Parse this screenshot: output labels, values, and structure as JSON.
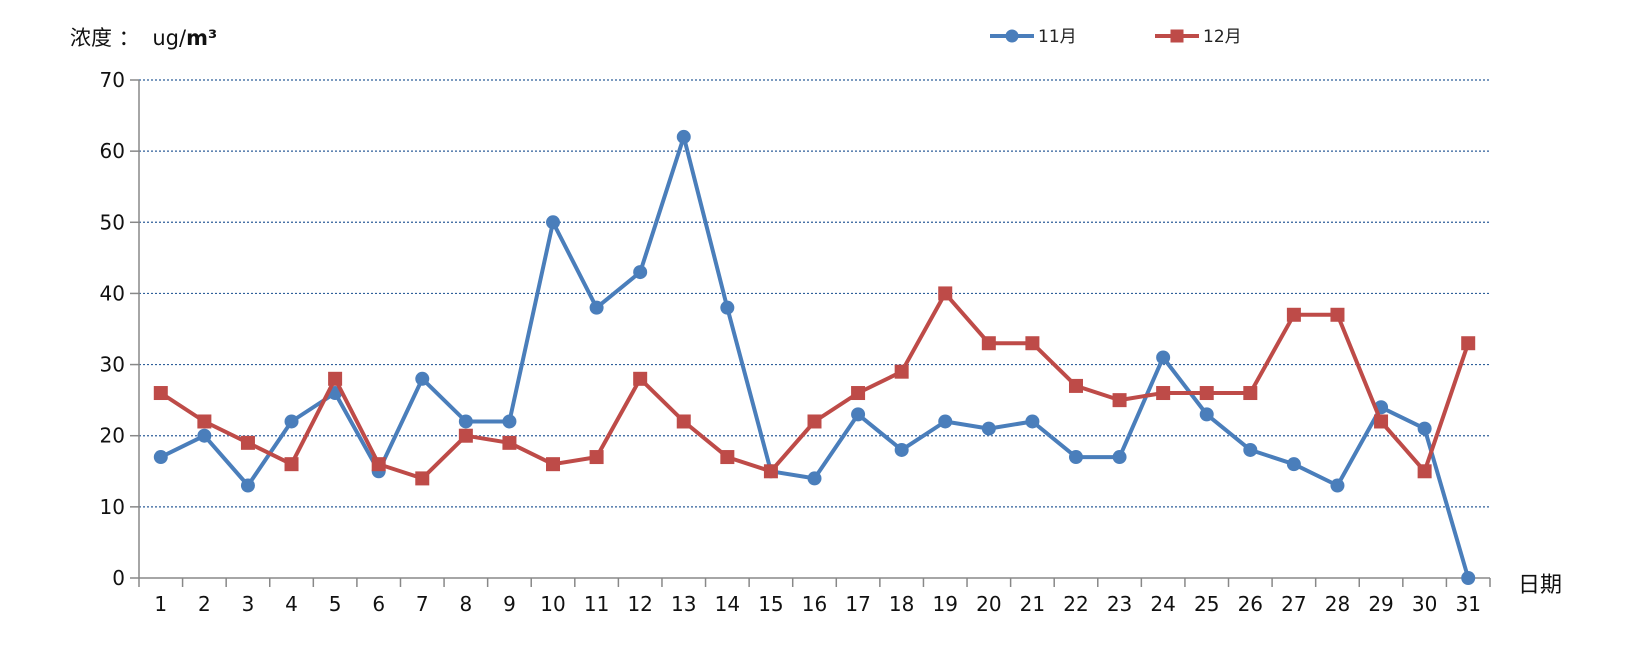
{
  "chart_data": {
    "type": "line",
    "ylabel_prefix": "浓度 ：",
    "ylabel_unit_light": "ug/",
    "ylabel_unit_bold": "m³",
    "xlabel": "日期",
    "categories": [
      "1",
      "2",
      "3",
      "4",
      "5",
      "6",
      "7",
      "8",
      "9",
      "10",
      "11",
      "12",
      "13",
      "14",
      "15",
      "16",
      "17",
      "18",
      "19",
      "20",
      "21",
      "22",
      "23",
      "24",
      "25",
      "26",
      "27",
      "28",
      "29",
      "30",
      "31"
    ],
    "ylim": [
      0,
      70
    ],
    "yticks": [
      0,
      10,
      20,
      30,
      40,
      50,
      60,
      70
    ],
    "grid": true,
    "legend_position": "top",
    "series": [
      {
        "name": "11月",
        "color": "#4a7ebb",
        "marker": "circle",
        "values": [
          17,
          20,
          13,
          22,
          26,
          15,
          28,
          22,
          22,
          50,
          38,
          43,
          62,
          38,
          15,
          14,
          23,
          18,
          22,
          21,
          22,
          17,
          17,
          31,
          23,
          18,
          16,
          13,
          24,
          21,
          0
        ]
      },
      {
        "name": "12月",
        "color": "#be4b48",
        "marker": "square",
        "values": [
          26,
          22,
          19,
          16,
          28,
          16,
          14,
          20,
          19,
          16,
          17,
          28,
          22,
          17,
          15,
          22,
          26,
          29,
          40,
          33,
          33,
          27,
          25,
          26,
          26,
          26,
          37,
          37,
          22,
          15,
          33
        ]
      }
    ]
  }
}
